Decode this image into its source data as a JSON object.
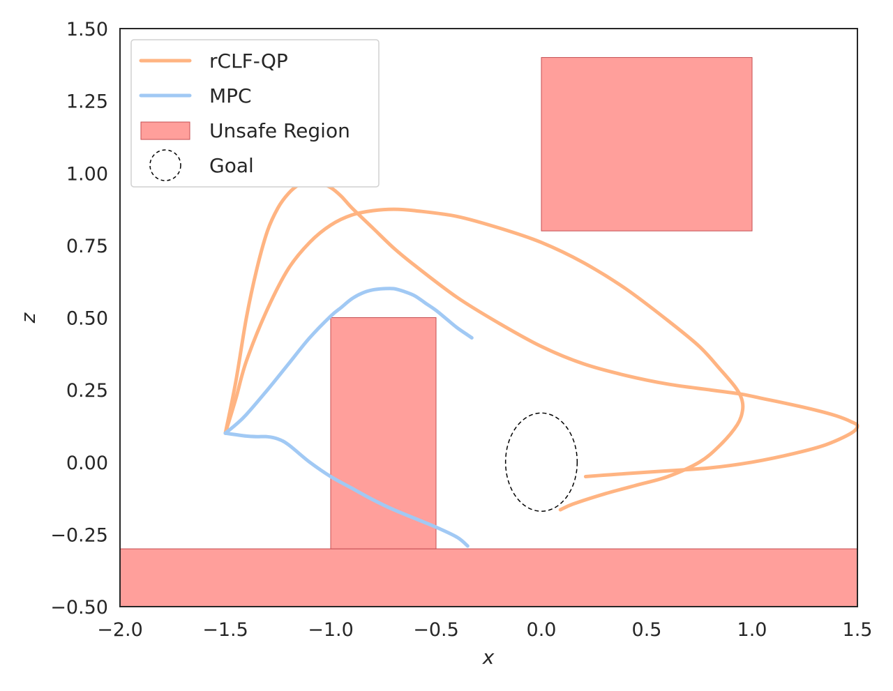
{
  "chart_data": {
    "type": "line",
    "title": "",
    "xlabel": "x",
    "ylabel": "z",
    "xlim": [
      -2.0,
      1.5
    ],
    "ylim": [
      -0.5,
      1.5
    ],
    "x_ticks": [
      -2.0,
      -1.5,
      -1.0,
      -0.5,
      0.0,
      0.5,
      1.0,
      1.5
    ],
    "x_tick_labels": [
      "−2.0",
      "−1.5",
      "−1.0",
      "−0.5",
      "0.0",
      "0.5",
      "1.0",
      "1.5"
    ],
    "y_ticks": [
      -0.5,
      -0.25,
      0.0,
      0.25,
      0.5,
      0.75,
      1.0,
      1.25,
      1.5
    ],
    "y_tick_labels": [
      "−0.50",
      "−0.25",
      "0.00",
      "0.25",
      "0.50",
      "0.75",
      "1.00",
      "1.25",
      "1.50"
    ],
    "grid": false,
    "legend_position": "upper-left",
    "legend": [
      {
        "label": "rCLF-QP",
        "kind": "line",
        "color": "#ffb482"
      },
      {
        "label": "MPC",
        "kind": "line",
        "color": "#a1c9f4"
      },
      {
        "label": "Unsafe Region",
        "kind": "patch",
        "color": "#ff9f9b"
      },
      {
        "label": "Goal",
        "kind": "circle",
        "color": "#000000"
      }
    ],
    "unsafe_regions": [
      {
        "x": [
          -2.0,
          1.5
        ],
        "z": [
          -0.5,
          -0.3
        ]
      },
      {
        "x": [
          -1.0,
          -0.5
        ],
        "z": [
          -0.3,
          0.5
        ]
      },
      {
        "x": [
          0.0,
          1.0
        ],
        "z": [
          0.8,
          1.4
        ]
      }
    ],
    "unsafe_color": "#ff9f9b",
    "unsafe_edge_color": "#c44e52",
    "goal": {
      "center": [
        0.0,
        0.0
      ],
      "radius": 0.17
    },
    "series": [
      {
        "name": "rCLF-QP",
        "color": "#ffb482",
        "x": [
          -1.5,
          -1.45,
          -1.4,
          -1.35,
          -1.3,
          -1.25,
          -1.2,
          -1.15,
          -1.1,
          -1.05,
          -1.0,
          -0.95,
          -0.9,
          -0.8,
          -0.7,
          -0.6,
          -0.4,
          -0.2,
          0.0,
          0.2,
          0.4,
          0.6,
          0.8,
          0.95,
          1.05,
          1.15,
          1.3,
          1.4,
          1.47,
          1.5,
          1.47,
          1.35,
          1.2,
          1.0,
          0.8,
          0.6,
          0.4,
          0.3,
          0.21
        ],
        "y": [
          0.1,
          0.28,
          0.5,
          0.67,
          0.8,
          0.88,
          0.93,
          0.96,
          0.97,
          0.965,
          0.95,
          0.92,
          0.88,
          0.81,
          0.74,
          0.68,
          0.57,
          0.48,
          0.4,
          0.34,
          0.3,
          0.27,
          0.25,
          0.235,
          0.22,
          0.205,
          0.18,
          0.16,
          0.14,
          0.125,
          0.1,
          0.06,
          0.03,
          0.0,
          -0.02,
          -0.03,
          -0.04,
          -0.045,
          -0.05
        ]
      },
      {
        "name": "rCLF-QP",
        "color": "#ffb482",
        "x": [
          -1.5,
          -1.45,
          -1.4,
          -1.3,
          -1.2,
          -1.1,
          -1.0,
          -0.9,
          -0.8,
          -0.7,
          -0.6,
          -0.4,
          -0.2,
          0.0,
          0.2,
          0.4,
          0.6,
          0.75,
          0.85,
          0.92,
          0.95,
          0.955,
          0.93,
          0.85,
          0.75,
          0.6,
          0.45,
          0.3,
          0.15,
          0.09
        ],
        "y": [
          0.1,
          0.22,
          0.35,
          0.53,
          0.67,
          0.76,
          0.82,
          0.855,
          0.87,
          0.875,
          0.87,
          0.85,
          0.81,
          0.76,
          0.69,
          0.6,
          0.49,
          0.4,
          0.32,
          0.26,
          0.22,
          0.18,
          0.13,
          0.06,
          0.0,
          -0.05,
          -0.08,
          -0.11,
          -0.145,
          -0.165
        ]
      },
      {
        "name": "MPC",
        "color": "#a1c9f4",
        "x": [
          -1.5,
          -1.45,
          -1.4,
          -1.3,
          -1.2,
          -1.1,
          -1.0,
          -0.95,
          -0.9,
          -0.85,
          -0.8,
          -0.75,
          -0.7,
          -0.65,
          -0.6,
          -0.55,
          -0.5,
          -0.45,
          -0.4,
          -0.35,
          -0.33
        ],
        "y": [
          0.1,
          0.13,
          0.165,
          0.25,
          0.34,
          0.43,
          0.505,
          0.535,
          0.565,
          0.585,
          0.596,
          0.6,
          0.6,
          0.59,
          0.575,
          0.55,
          0.525,
          0.495,
          0.465,
          0.44,
          0.43
        ]
      },
      {
        "name": "MPC",
        "color": "#a1c9f4",
        "x": [
          -1.5,
          -1.45,
          -1.4,
          -1.35,
          -1.3,
          -1.25,
          -1.2,
          -1.1,
          -1.0,
          -0.9,
          -0.8,
          -0.7,
          -0.6,
          -0.5,
          -0.4,
          -0.35
        ],
        "y": [
          0.1,
          0.095,
          0.09,
          0.088,
          0.088,
          0.08,
          0.06,
          0.0,
          -0.05,
          -0.09,
          -0.13,
          -0.165,
          -0.195,
          -0.225,
          -0.26,
          -0.29
        ]
      }
    ]
  }
}
